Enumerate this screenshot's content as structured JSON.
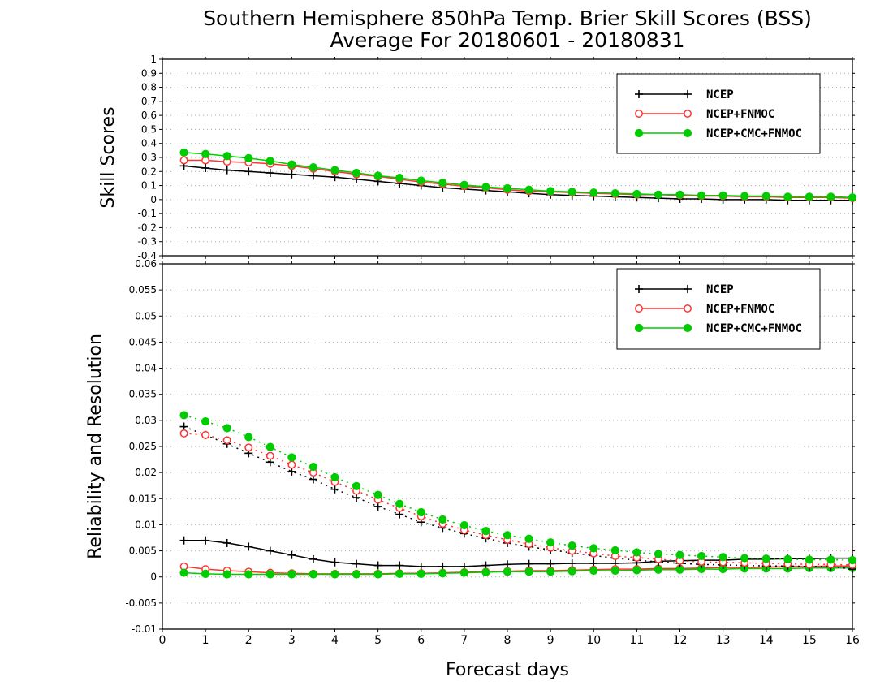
{
  "title_line1": "Southern Hemisphere 850hPa Temp. Brier Skill Scores (BSS)",
  "title_line2": "Average For 20180601 - 20180831",
  "xlabel": "Forecast days",
  "colors": {
    "NCEP": "#000000",
    "NCEP+FNMOC": "#ff3333",
    "NCEP+CMC+FNMOC": "#00cc00"
  },
  "chart_data": [
    {
      "type": "line",
      "ylabel": "Skill Scores",
      "xlim": [
        0,
        16
      ],
      "ylim": [
        -0.4,
        1
      ],
      "xticks": [
        "0",
        "1",
        "2",
        "3",
        "4",
        "5",
        "6",
        "7",
        "8",
        "9",
        "10",
        "11",
        "12",
        "13",
        "14",
        "15",
        "16"
      ],
      "yticks": [
        "-0.4",
        "-0.3",
        "-0.2",
        "-0.1",
        "0",
        "0.1",
        "0.2",
        "0.3",
        "0.4",
        "0.5",
        "0.6",
        "0.7",
        "0.8",
        "0.9",
        "1"
      ],
      "grid": true,
      "legend": "top-right",
      "x": [
        0.5,
        1,
        1.5,
        2,
        2.5,
        3,
        3.5,
        4,
        4.5,
        5,
        5.5,
        6,
        6.5,
        7,
        7.5,
        8,
        8.5,
        9,
        9.5,
        10,
        10.5,
        11,
        11.5,
        12,
        12.5,
        13,
        13.5,
        14,
        14.5,
        15,
        15.5,
        16
      ],
      "series": [
        {
          "name": "NCEP",
          "values": [
            0.24,
            0.225,
            0.21,
            0.2,
            0.19,
            0.18,
            0.17,
            0.16,
            0.145,
            0.13,
            0.115,
            0.1,
            0.085,
            0.075,
            0.065,
            0.055,
            0.045,
            0.035,
            0.03,
            0.025,
            0.02,
            0.015,
            0.01,
            0.005,
            0.005,
            0.0,
            0.0,
            0.0,
            -0.005,
            -0.005,
            -0.005,
            -0.005
          ]
        },
        {
          "name": "NCEP+FNMOC",
          "values": [
            0.28,
            0.28,
            0.27,
            0.265,
            0.255,
            0.24,
            0.22,
            0.2,
            0.18,
            0.165,
            0.145,
            0.125,
            0.11,
            0.095,
            0.085,
            0.07,
            0.06,
            0.055,
            0.05,
            0.045,
            0.04,
            0.035,
            0.035,
            0.03,
            0.025,
            0.025,
            0.02,
            0.02,
            0.015,
            0.015,
            0.015,
            0.01
          ]
        },
        {
          "name": "NCEP+CMC+FNMOC",
          "values": [
            0.335,
            0.325,
            0.31,
            0.295,
            0.275,
            0.25,
            0.23,
            0.21,
            0.19,
            0.17,
            0.155,
            0.135,
            0.12,
            0.105,
            0.09,
            0.08,
            0.07,
            0.06,
            0.055,
            0.05,
            0.045,
            0.04,
            0.035,
            0.035,
            0.03,
            0.03,
            0.025,
            0.025,
            0.02,
            0.02,
            0.02,
            0.015
          ]
        }
      ]
    },
    {
      "type": "line",
      "ylabel": "Reliability and Resolution",
      "xlim": [
        0,
        16
      ],
      "ylim": [
        -0.01,
        0.06
      ],
      "xticks": [
        "0",
        "1",
        "2",
        "3",
        "4",
        "5",
        "6",
        "7",
        "8",
        "9",
        "10",
        "11",
        "12",
        "13",
        "14",
        "15",
        "16"
      ],
      "yticks": [
        "-0.01",
        "-0.005",
        "0",
        "0.005",
        "0.01",
        "0.015",
        "0.02",
        "0.025",
        "0.03",
        "0.035",
        "0.04",
        "0.045",
        "0.05",
        "0.055",
        "0.06"
      ],
      "grid": true,
      "legend": "top-right",
      "x": [
        0.5,
        1,
        1.5,
        2,
        2.5,
        3,
        3.5,
        4,
        4.5,
        5,
        5.5,
        6,
        6.5,
        7,
        7.5,
        8,
        8.5,
        9,
        9.5,
        10,
        10.5,
        11,
        11.5,
        12,
        12.5,
        13,
        13.5,
        14,
        14.5,
        15,
        15.5,
        16
      ],
      "series": [
        {
          "name": "NCEP",
          "line": "solid",
          "values": [
            0.007,
            0.007,
            0.0065,
            0.0058,
            0.005,
            0.0042,
            0.0034,
            0.0028,
            0.0025,
            0.0022,
            0.0022,
            0.002,
            0.002,
            0.002,
            0.0022,
            0.0024,
            0.0025,
            0.0025,
            0.0026,
            0.0026,
            0.0026,
            0.0027,
            0.003,
            0.0031,
            0.0032,
            0.0032,
            0.0034,
            0.0034,
            0.0035,
            0.0035,
            0.0036,
            0.0036
          ]
        },
        {
          "name": "NCEP+FNMOC",
          "line": "solid",
          "values": [
            0.002,
            0.0015,
            0.0012,
            0.001,
            0.0008,
            0.0007,
            0.0006,
            0.0006,
            0.0006,
            0.0006,
            0.0007,
            0.0007,
            0.0008,
            0.0009,
            0.001,
            0.0011,
            0.0012,
            0.0012,
            0.0013,
            0.0014,
            0.0015,
            0.0015,
            0.0016,
            0.0016,
            0.0017,
            0.0018,
            0.0018,
            0.0019,
            0.002,
            0.002,
            0.0021,
            0.0021
          ]
        },
        {
          "name": "NCEP+CMC+FNMOC",
          "line": "solid",
          "values": [
            0.0008,
            0.0006,
            0.0005,
            0.0005,
            0.0005,
            0.0005,
            0.0005,
            0.0005,
            0.0005,
            0.0005,
            0.0006,
            0.0006,
            0.0007,
            0.0008,
            0.0009,
            0.001,
            0.001,
            0.001,
            0.0011,
            0.0012,
            0.0012,
            0.0013,
            0.0014,
            0.0014,
            0.0015,
            0.0015,
            0.0016,
            0.0016,
            0.0016,
            0.0017,
            0.0017,
            0.0017
          ]
        },
        {
          "name": "NCEP",
          "line": "dotted",
          "values": [
            0.0288,
            0.0272,
            0.0255,
            0.0237,
            0.022,
            0.0202,
            0.0187,
            0.0168,
            0.0152,
            0.0135,
            0.012,
            0.0105,
            0.0094,
            0.0083,
            0.0074,
            0.0065,
            0.0058,
            0.0052,
            0.0046,
            0.0041,
            0.0036,
            0.0032,
            0.0029,
            0.0026,
            0.0024,
            0.0023,
            0.0022,
            0.0021,
            0.0021,
            0.002,
            0.002,
            0.0015
          ]
        },
        {
          "name": "NCEP+FNMOC",
          "line": "dotted",
          "values": [
            0.0275,
            0.0272,
            0.0262,
            0.0248,
            0.0232,
            0.0215,
            0.02,
            0.0182,
            0.0165,
            0.0148,
            0.0132,
            0.0116,
            0.0102,
            0.009,
            0.008,
            0.0071,
            0.0063,
            0.0056,
            0.005,
            0.0045,
            0.004,
            0.0037,
            0.0034,
            0.0031,
            0.0029,
            0.0028,
            0.0027,
            0.0026,
            0.0025,
            0.0024,
            0.0024,
            0.0023
          ]
        },
        {
          "name": "NCEP+CMC+FNMOC",
          "line": "dotted",
          "values": [
            0.031,
            0.0298,
            0.0285,
            0.0268,
            0.0249,
            0.0229,
            0.0211,
            0.0191,
            0.0174,
            0.0157,
            0.014,
            0.0124,
            0.011,
            0.0099,
            0.0088,
            0.008,
            0.0073,
            0.0066,
            0.006,
            0.0055,
            0.0051,
            0.0047,
            0.0044,
            0.0042,
            0.004,
            0.0038,
            0.0036,
            0.0035,
            0.0034,
            0.0033,
            0.0033,
            0.0032
          ]
        }
      ]
    }
  ]
}
